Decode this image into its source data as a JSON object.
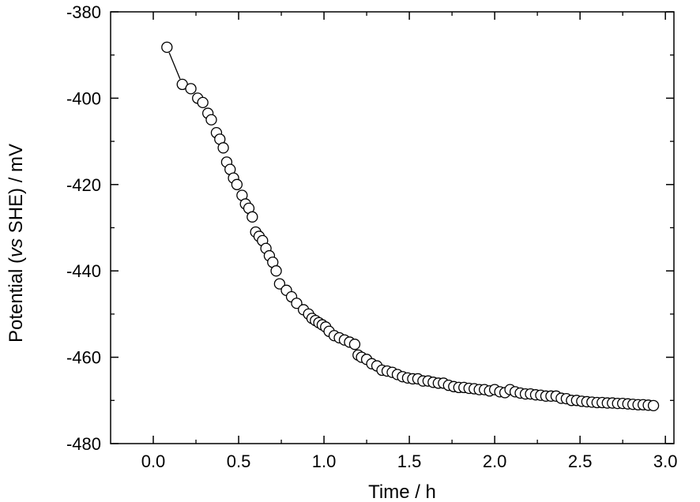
{
  "chart_data": {
    "type": "scatter",
    "title": "",
    "xlabel": "Time / h",
    "ylabel_parts": {
      "prefix": "Potential (",
      "italic": "vs",
      "suffix": " SHE) / mV"
    },
    "xlim": [
      -0.25,
      3.05
    ],
    "ylim": [
      -480,
      -380
    ],
    "x_ticks": [
      "0.0",
      "0.5",
      "1.0",
      "1.5",
      "2.0",
      "2.5",
      "3.0"
    ],
    "y_ticks": [
      "-380",
      "-400",
      "-420",
      "-440",
      "-460",
      "-480"
    ],
    "grid": false,
    "legend": "none",
    "marker": "open-circle",
    "marker_color": "#000000",
    "series": [
      {
        "x": [
          0.08,
          0.17,
          0.22,
          0.26,
          0.29,
          0.32,
          0.34,
          0.37,
          0.39,
          0.41,
          0.43,
          0.45,
          0.47,
          0.49,
          0.52,
          0.54,
          0.56,
          0.58,
          0.6,
          0.62,
          0.64,
          0.66,
          0.68,
          0.7,
          0.72,
          0.74,
          0.78,
          0.81,
          0.84,
          0.88,
          0.91,
          0.93,
          0.95,
          0.97,
          0.99,
          1.01,
          1.03,
          1.06,
          1.09,
          1.12,
          1.15,
          1.18,
          1.2,
          1.22,
          1.25,
          1.28,
          1.31,
          1.34,
          1.37,
          1.4,
          1.43,
          1.46,
          1.49,
          1.52,
          1.55,
          1.58,
          1.61,
          1.64,
          1.67,
          1.7,
          1.73,
          1.76,
          1.79,
          1.82,
          1.85,
          1.88,
          1.91,
          1.94,
          1.97,
          2.0,
          2.03,
          2.06,
          2.09,
          2.12,
          2.15,
          2.18,
          2.21,
          2.24,
          2.27,
          2.3,
          2.33,
          2.36,
          2.39,
          2.42,
          2.45,
          2.48,
          2.51,
          2.54,
          2.57,
          2.6,
          2.63,
          2.66,
          2.69,
          2.72,
          2.75,
          2.78,
          2.81,
          2.84,
          2.87,
          2.9,
          2.93
        ],
        "y": [
          -388.2,
          -396.8,
          -397.8,
          -400.0,
          -401.0,
          -403.5,
          -405.0,
          -408.0,
          -409.5,
          -411.5,
          -414.8,
          -416.5,
          -418.5,
          -420.0,
          -422.5,
          -424.5,
          -425.5,
          -427.5,
          -431.0,
          -432.0,
          -433.0,
          -434.8,
          -436.5,
          -438.0,
          -440.0,
          -443.0,
          -444.5,
          -446.0,
          -447.5,
          -449.0,
          -450.0,
          -451.0,
          -451.5,
          -452.0,
          -452.5,
          -453.0,
          -454.0,
          -455.0,
          -455.5,
          -456.0,
          -456.5,
          -457.0,
          -459.5,
          -460.0,
          -460.5,
          -461.5,
          -462.0,
          -463.0,
          -463.2,
          -463.5,
          -464.0,
          -464.5,
          -464.8,
          -465.0,
          -465.0,
          -465.5,
          -465.5,
          -465.8,
          -466.0,
          -466.0,
          -466.5,
          -466.8,
          -467.0,
          -467.0,
          -467.2,
          -467.3,
          -467.5,
          -467.5,
          -467.8,
          -467.5,
          -468.0,
          -468.2,
          -467.5,
          -468.0,
          -468.3,
          -468.5,
          -468.5,
          -468.7,
          -468.8,
          -469.0,
          -469.0,
          -469.0,
          -469.5,
          -469.6,
          -470.0,
          -470.0,
          -470.2,
          -470.3,
          -470.4,
          -470.5,
          -470.5,
          -470.6,
          -470.6,
          -470.7,
          -470.7,
          -470.8,
          -470.9,
          -471.0,
          -471.0,
          -471.1,
          -471.2
        ]
      }
    ]
  }
}
